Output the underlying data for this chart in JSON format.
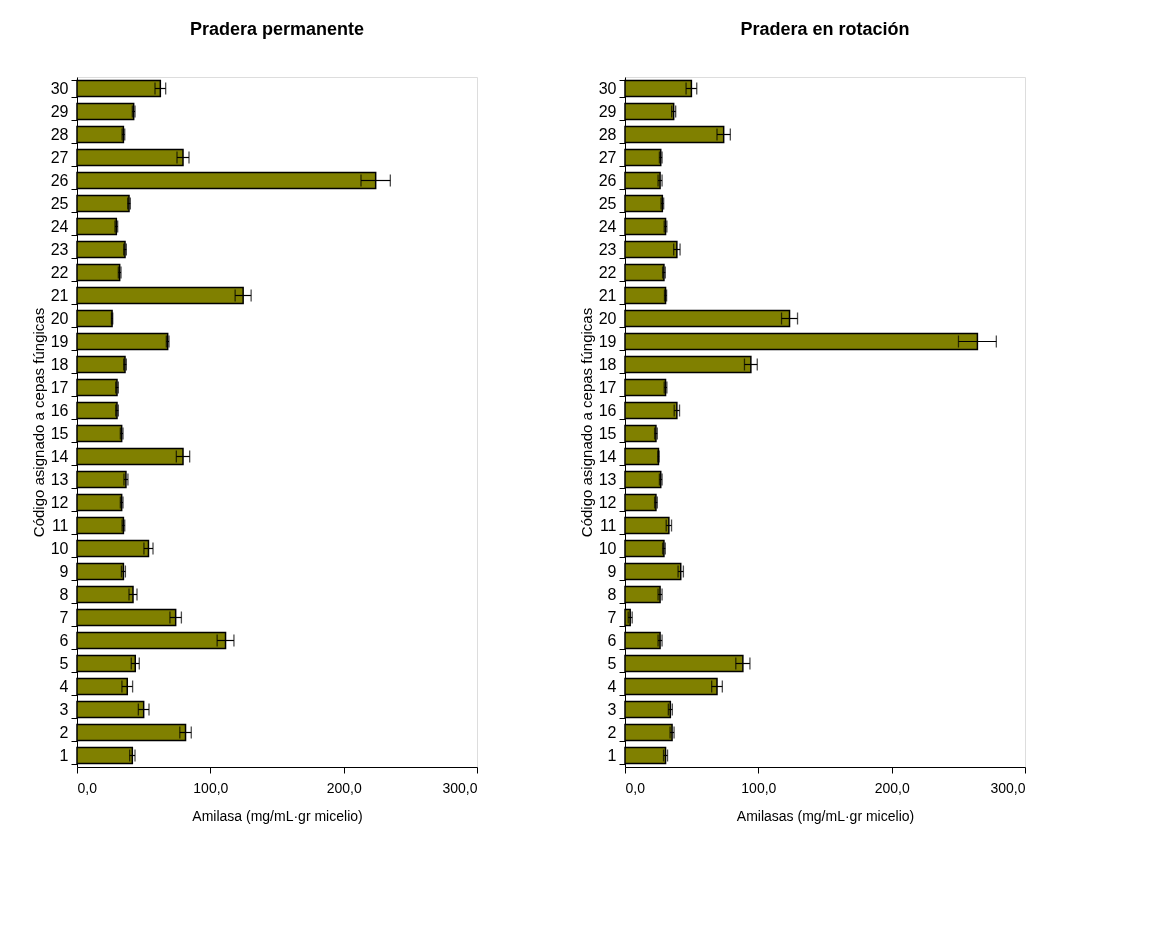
{
  "chart_data": [
    {
      "type": "bar",
      "orientation": "horizontal",
      "title": "Pradera permanente",
      "xlabel": "Amilasa (mg/mL·gr micelio)",
      "ylabel": "Código asignado a cepas fúngicas",
      "categories": [
        "30",
        "29",
        "28",
        "27",
        "26",
        "25",
        "24",
        "23",
        "22",
        "21",
        "20",
        "19",
        "18",
        "17",
        "16",
        "15",
        "14",
        "13",
        "12",
        "11",
        "10",
        "9",
        "8",
        "7",
        "6",
        "5",
        "4",
        "3",
        "2",
        "1"
      ],
      "series": [
        {
          "color": "#808000",
          "values": [
            62.5,
            42.5,
            34.8,
            79.5,
            224,
            39,
            29.5,
            36,
            32,
            124.6,
            26.3,
            68,
            36,
            30,
            30,
            33.5,
            79.5,
            36.7,
            33.5,
            34.8,
            53.6,
            34.8,
            42,
            74,
            111.4,
            43.7,
            37.7,
            50,
            81.4,
            41.5
          ],
          "errors": [
            4,
            1,
            1,
            4.5,
            11,
            1,
            1,
            1,
            1,
            6,
            0.5,
            1,
            1,
            1,
            1,
            1,
            5,
            1.5,
            1,
            1,
            3.4,
            1.5,
            3,
            4.3,
            6.3,
            3,
            4,
            4,
            4.3,
            2
          ]
        }
      ],
      "xlim": [
        0,
        300
      ],
      "xticks": [
        {
          "value": 0,
          "label": "0,0"
        },
        {
          "value": 100,
          "label": "100,0"
        },
        {
          "value": 200,
          "label": "200,0"
        },
        {
          "value": 300,
          "label": "300,0"
        }
      ],
      "grid": false
    },
    {
      "type": "bar",
      "orientation": "horizontal",
      "title": "Pradera en rotación",
      "xlabel": "Amilasas (mg/mL·gr micelio)",
      "ylabel": "Código asignado a cepas fúngicas",
      "categories": [
        "30",
        "29",
        "28",
        "27",
        "26",
        "25",
        "24",
        "23",
        "22",
        "21",
        "20",
        "19",
        "18",
        "17",
        "16",
        "15",
        "14",
        "13",
        "12",
        "11",
        "10",
        "9",
        "8",
        "7",
        "6",
        "5",
        "4",
        "3",
        "2",
        "1"
      ],
      "series": [
        {
          "color": "#808000",
          "values": [
            49.8,
            36.5,
            74,
            26.8,
            26.3,
            28,
            30.4,
            38.9,
            29.2,
            30.4,
            123.4,
            264.3,
            94.4,
            30.4,
            38.9,
            23.2,
            25.1,
            26.8,
            23.2,
            32.9,
            29.2,
            41.8,
            26.3,
            3.9,
            26.3,
            88.4,
            69,
            34,
            35.3,
            30.4
          ],
          "errors": [
            4,
            1.5,
            5,
            1,
            1.5,
            1,
            1,
            2.4,
            1,
            0.8,
            6,
            14.2,
            4.8,
            1,
            2,
            1,
            0.5,
            1,
            1,
            2,
            1,
            2,
            1.5,
            1.5,
            1.5,
            5.3,
            4,
            1.5,
            1.5,
            1.5
          ]
        }
      ],
      "xlim": [
        0,
        300
      ],
      "xticks": [
        {
          "value": 0,
          "label": "0,0"
        },
        {
          "value": 100,
          "label": "100,0"
        },
        {
          "value": 200,
          "label": "200,0"
        },
        {
          "value": 300,
          "label": "300,0"
        }
      ],
      "grid": false
    }
  ]
}
